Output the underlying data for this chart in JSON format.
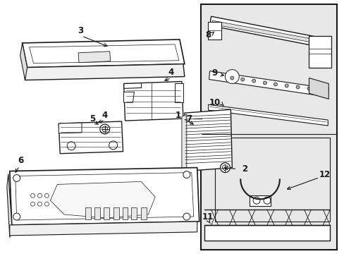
{
  "bg_color": "#ffffff",
  "line_color": "#1a1a1a",
  "panel_bg": "#e8e8e8",
  "fig_width": 4.89,
  "fig_height": 3.6,
  "dpi": 100
}
